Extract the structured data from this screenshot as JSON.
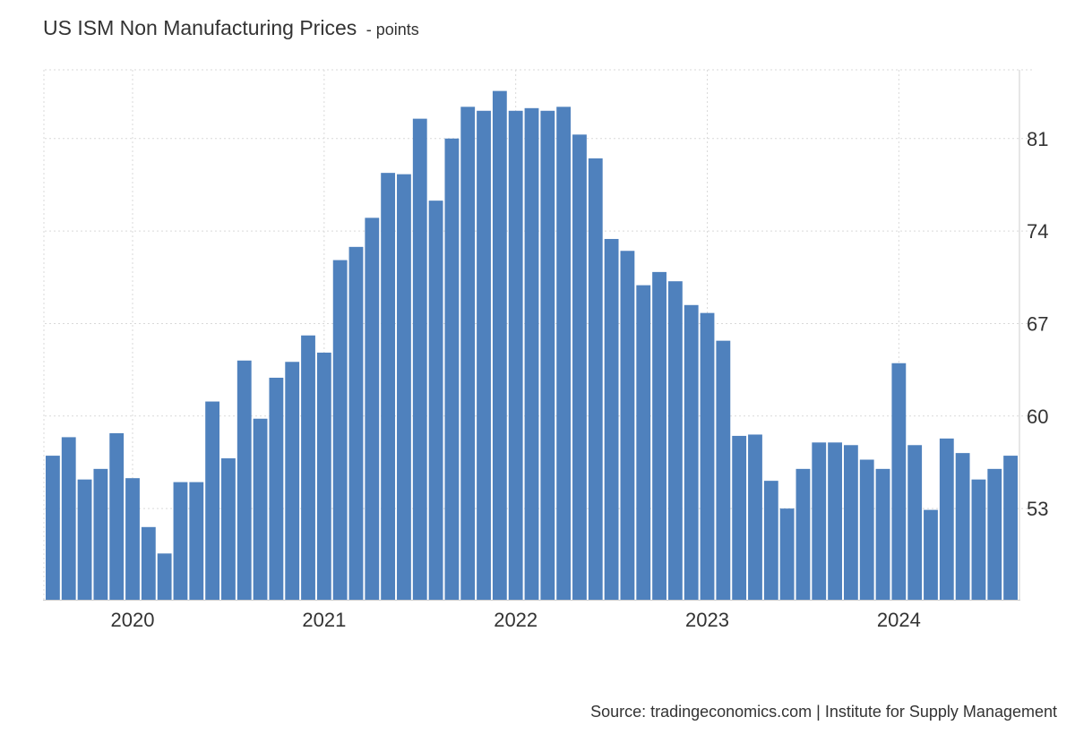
{
  "chart_data": {
    "type": "bar",
    "title": "US ISM Non Manufacturing Prices",
    "unit": "- points",
    "source": "Source: tradingeconomics.com | Institute for Supply Management",
    "color": "#4f81bd",
    "ylim": [
      46.1,
      86.2
    ],
    "yticks": [
      53,
      60,
      67,
      74,
      81
    ],
    "xticks": [
      {
        "label": "2020",
        "index": 5
      },
      {
        "label": "2021",
        "index": 17
      },
      {
        "label": "2022",
        "index": 29
      },
      {
        "label": "2023",
        "index": 41
      },
      {
        "label": "2024",
        "index": 53
      }
    ],
    "grid": true,
    "categories": [
      "2019-07",
      "2019-08",
      "2019-09",
      "2019-10",
      "2019-11",
      "2019-12",
      "2020-01",
      "2020-02",
      "2020-03",
      "2020-04",
      "2020-05",
      "2020-06",
      "2020-07",
      "2020-08",
      "2020-09",
      "2020-10",
      "2020-11",
      "2020-12",
      "2021-01",
      "2021-02",
      "2021-03",
      "2021-04",
      "2021-05",
      "2021-06",
      "2021-07",
      "2021-08",
      "2021-09",
      "2021-10",
      "2021-11",
      "2021-12",
      "2022-01",
      "2022-02",
      "2022-03",
      "2022-04",
      "2022-05",
      "2022-06",
      "2022-07",
      "2022-08",
      "2022-09",
      "2022-10",
      "2022-11",
      "2022-12",
      "2023-01",
      "2023-02",
      "2023-03",
      "2023-04",
      "2023-05",
      "2023-06",
      "2023-07",
      "2023-08",
      "2023-09",
      "2023-10",
      "2023-11",
      "2023-12",
      "2024-01",
      "2024-02",
      "2024-03",
      "2024-04",
      "2024-05",
      "2024-06",
      "2024-07"
    ],
    "values": [
      57.0,
      58.4,
      55.2,
      56.0,
      58.7,
      55.3,
      51.6,
      49.6,
      55.0,
      55.0,
      61.1,
      56.8,
      64.2,
      59.8,
      62.9,
      64.1,
      66.1,
      64.8,
      71.8,
      72.8,
      75.0,
      78.4,
      78.3,
      82.5,
      76.3,
      81.0,
      83.4,
      83.1,
      84.6,
      83.1,
      83.3,
      83.1,
      83.4,
      81.3,
      79.5,
      73.4,
      72.5,
      69.9,
      70.9,
      70.2,
      68.4,
      67.8,
      65.7,
      58.5,
      58.6,
      55.1,
      53.0,
      56.0,
      58.0,
      58.0,
      57.8,
      56.7,
      56.0,
      64.0,
      57.8,
      52.9,
      58.3,
      57.2,
      55.2,
      56.0,
      57.0
    ]
  }
}
